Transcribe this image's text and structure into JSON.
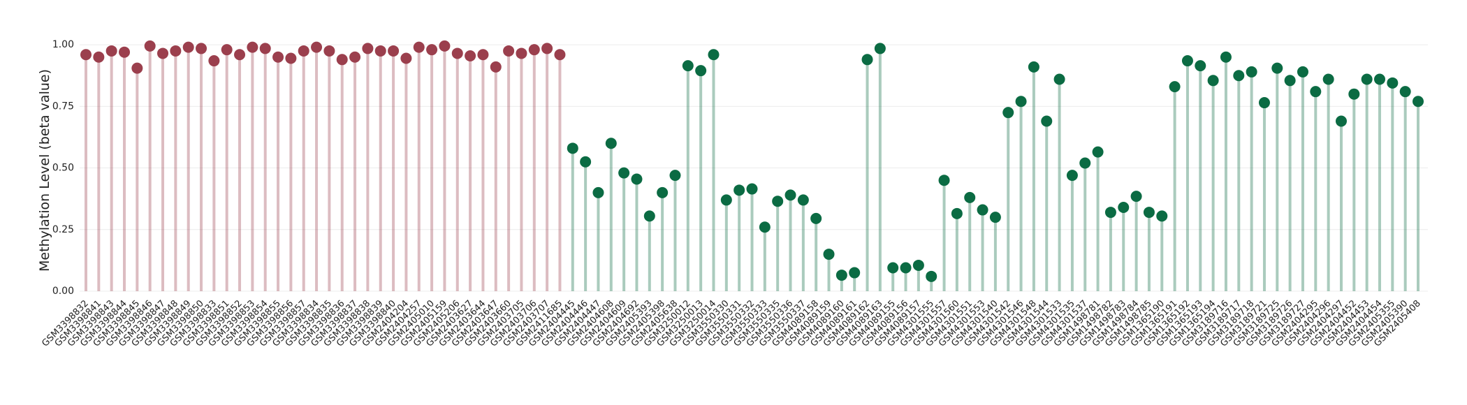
{
  "chart_data": {
    "type": "lollipop",
    "y_label": "Methylation Level (beta value)",
    "categories": [
      "GSM3398832",
      "GSM3398841",
      "GSM3398843",
      "GSM3398844",
      "GSM3398845",
      "GSM3398846",
      "GSM3398847",
      "GSM3398848",
      "GSM3398849",
      "GSM3398850",
      "GSM3398833",
      "GSM3398851",
      "GSM3398852",
      "GSM3398853",
      "GSM3398854",
      "GSM3398855",
      "GSM3398856",
      "GSM3398857",
      "GSM3398834",
      "GSM3398835",
      "GSM3398836",
      "GSM3398837",
      "GSM3398838",
      "GSM3398839",
      "GSM3398840",
      "GSM2404204",
      "GSM2404257",
      "GSM2405010",
      "GSM2405159",
      "GSM2405206",
      "GSM2403627",
      "GSM2403644",
      "GSM2403647",
      "GSM2403660",
      "GSM2403705",
      "GSM2403706",
      "GSM2403707",
      "GSM2411685",
      "GSM2404445",
      "GSM2404446",
      "GSM2404447",
      "GSM2404608",
      "GSM2404609",
      "GSM2404692",
      "GSM2405393",
      "GSM2405398",
      "GSM2405638",
      "GSM3250012",
      "GSM3250013",
      "GSM3250014",
      "GSM3550330",
      "GSM3550331",
      "GSM3550332",
      "GSM3550333",
      "GSM3550335",
      "GSM3550336",
      "GSM3550337",
      "GSM4089158",
      "GSM4089159",
      "GSM4089160",
      "GSM4089161",
      "GSM4089162",
      "GSM4089163",
      "GSM4089155",
      "GSM4089156",
      "GSM4089157",
      "GSM4301555",
      "GSM4301557",
      "GSM4301560",
      "GSM4301551",
      "GSM4301553",
      "GSM4301540",
      "GSM4301542",
      "GSM4301546",
      "GSM4301548",
      "GSM4301544",
      "GSM4301533",
      "GSM4301535",
      "GSM4301537",
      "GSM1498781",
      "GSM1498782",
      "GSM1498783",
      "GSM1498784",
      "GSM1498785",
      "GSM1365190",
      "GSM1365191",
      "GSM1365192",
      "GSM1365193",
      "GSM1365194",
      "GSM3189716",
      "GSM3189717",
      "GSM3189718",
      "GSM3189721",
      "GSM3189725",
      "GSM3189726",
      "GSM3189727",
      "GSM2404295",
      "GSM2404296",
      "GSM2404297",
      "GSM2404452",
      "GSM2404453",
      "GSM2404454",
      "GSM2405355",
      "GSM2405390",
      "GSM2405408"
    ],
    "values": [
      0.96,
      0.95,
      0.975,
      0.97,
      0.905,
      0.995,
      0.965,
      0.975,
      0.99,
      0.985,
      0.935,
      0.98,
      0.96,
      0.99,
      0.985,
      0.95,
      0.945,
      0.975,
      0.99,
      0.975,
      0.94,
      0.95,
      0.985,
      0.975,
      0.975,
      0.945,
      0.99,
      0.98,
      0.995,
      0.965,
      0.955,
      0.96,
      0.91,
      0.975,
      0.965,
      0.98,
      0.985,
      0.96,
      0.58,
      0.525,
      0.4,
      0.6,
      0.48,
      0.455,
      0.305,
      0.4,
      0.47,
      0.915,
      0.895,
      0.96,
      0.37,
      0.41,
      0.415,
      0.26,
      0.365,
      0.39,
      0.37,
      0.295,
      0.15,
      0.065,
      0.075,
      0.94,
      0.985,
      0.095,
      0.095,
      0.105,
      0.06,
      0.45,
      0.315,
      0.38,
      0.33,
      0.3,
      0.725,
      0.77,
      0.91,
      0.69,
      0.86,
      0.47,
      0.52,
      0.565,
      0.32,
      0.34,
      0.385,
      0.32,
      0.305,
      0.83,
      0.935,
      0.915,
      0.855,
      0.95,
      0.875,
      0.89,
      0.765,
      0.905,
      0.855,
      0.89,
      0.81,
      0.86,
      0.69,
      0.8,
      0.86,
      0.86,
      0.845,
      0.81,
      0.77
    ],
    "colors": [
      "#9b3f4d",
      "#9b3f4d",
      "#9b3f4d",
      "#9b3f4d",
      "#9b3f4d",
      "#9b3f4d",
      "#9b3f4d",
      "#9b3f4d",
      "#9b3f4d",
      "#9b3f4d",
      "#9b3f4d",
      "#9b3f4d",
      "#9b3f4d",
      "#9b3f4d",
      "#9b3f4d",
      "#9b3f4d",
      "#9b3f4d",
      "#9b3f4d",
      "#9b3f4d",
      "#9b3f4d",
      "#9b3f4d",
      "#9b3f4d",
      "#9b3f4d",
      "#9b3f4d",
      "#9b3f4d",
      "#9b3f4d",
      "#9b3f4d",
      "#9b3f4d",
      "#9b3f4d",
      "#9b3f4d",
      "#9b3f4d",
      "#9b3f4d",
      "#9b3f4d",
      "#9b3f4d",
      "#9b3f4d",
      "#9b3f4d",
      "#9b3f4d",
      "#9b3f4d",
      "#0b6b43",
      "#0b6b43",
      "#0b6b43",
      "#0b6b43",
      "#0b6b43",
      "#0b6b43",
      "#0b6b43",
      "#0b6b43",
      "#0b6b43",
      "#0b6b43",
      "#0b6b43",
      "#0b6b43",
      "#0b6b43",
      "#0b6b43",
      "#0b6b43",
      "#0b6b43",
      "#0b6b43",
      "#0b6b43",
      "#0b6b43",
      "#0b6b43",
      "#0b6b43",
      "#0b6b43",
      "#0b6b43",
      "#0b6b43",
      "#0b6b43",
      "#0b6b43",
      "#0b6b43",
      "#0b6b43",
      "#0b6b43",
      "#0b6b43",
      "#0b6b43",
      "#0b6b43",
      "#0b6b43",
      "#0b6b43",
      "#0b6b43",
      "#0b6b43",
      "#0b6b43",
      "#0b6b43",
      "#0b6b43",
      "#0b6b43",
      "#0b6b43",
      "#0b6b43",
      "#0b6b43",
      "#0b6b43",
      "#0b6b43",
      "#0b6b43",
      "#0b6b43",
      "#0b6b43",
      "#0b6b43",
      "#0b6b43",
      "#0b6b43",
      "#0b6b43",
      "#0b6b43",
      "#0b6b43",
      "#0b6b43",
      "#0b6b43",
      "#0b6b43",
      "#0b6b43",
      "#0b6b43",
      "#0b6b43",
      "#0b6b43",
      "#0b6b43",
      "#0b6b43",
      "#0b6b43",
      "#0b6b43",
      "#0b6b43",
      "#0b6b43"
    ],
    "ylim": [
      0,
      1.04
    ],
    "yticks": [
      {
        "value": 0,
        "label": "0.00"
      },
      {
        "value": 0.25,
        "label": "0.25"
      },
      {
        "value": 0.5,
        "label": "0.50"
      },
      {
        "value": 0.75,
        "label": "0.75"
      },
      {
        "value": 1,
        "label": "1.00"
      }
    ],
    "grid": true
  }
}
